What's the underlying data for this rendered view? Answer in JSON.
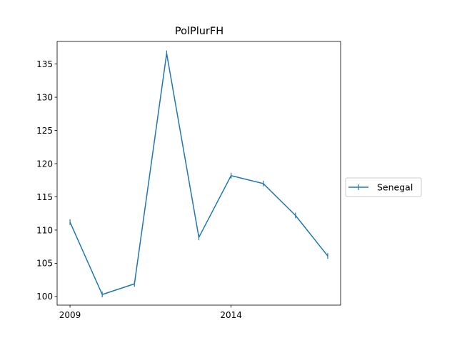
{
  "chart_data": {
    "type": "line",
    "title": "PolPlurFH",
    "xlabel": "",
    "ylabel": "",
    "x": [
      2009,
      2010,
      2011,
      2012,
      2013,
      2014,
      2015,
      2016,
      2017
    ],
    "series": [
      {
        "name": "Senegal",
        "color": "#1f77b4",
        "marker": "vertical-tick",
        "values": [
          111.2,
          100.3,
          101.9,
          136.6,
          108.9,
          118.2,
          117.0,
          112.2,
          106.1
        ]
      }
    ],
    "xlim": [
      2008.6,
      2017.4
    ],
    "ylim": [
      98.7,
      138.4
    ],
    "xticks": [
      2009,
      2014
    ],
    "yticks": [
      100,
      105,
      110,
      115,
      120,
      125,
      130,
      135
    ],
    "grid": false,
    "legend_position": "right-outside"
  }
}
